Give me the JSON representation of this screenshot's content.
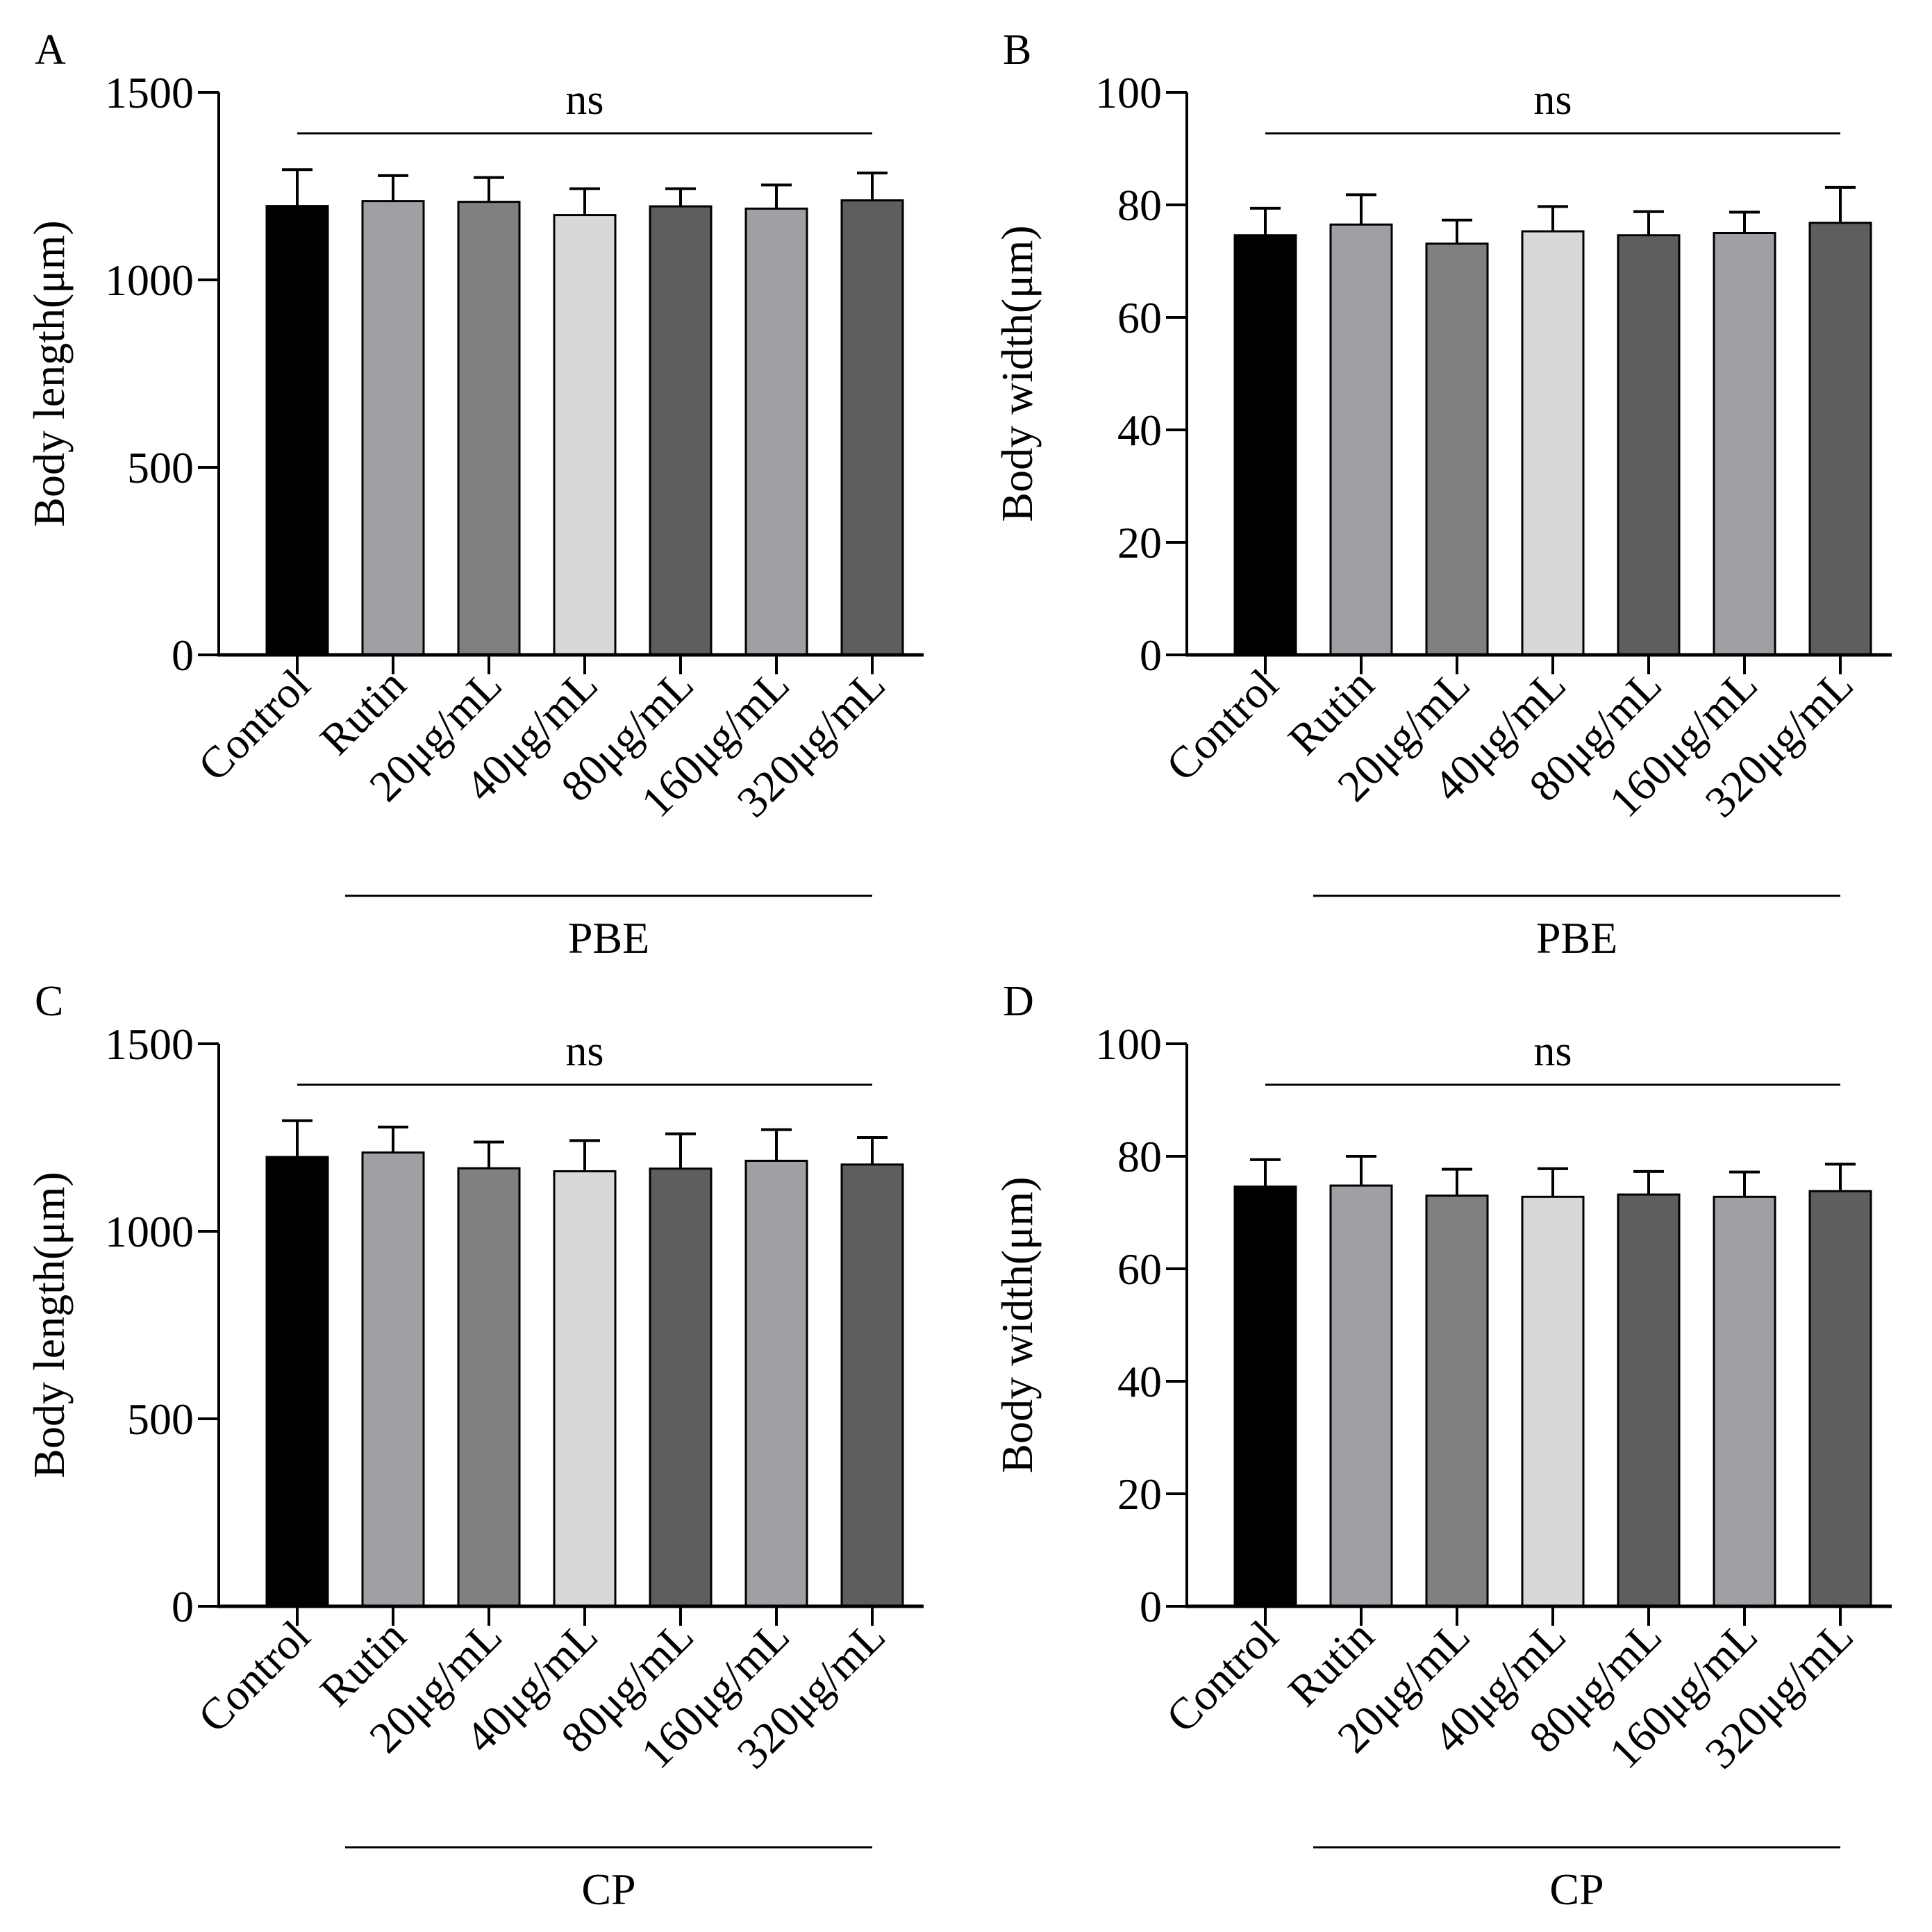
{
  "chart_data": [
    {
      "panel": "A",
      "type": "bar",
      "ylabel": "Body length(μm)",
      "ylim": [
        0,
        1500
      ],
      "yticks": [
        0,
        500,
        1000,
        1500
      ],
      "categories": [
        "Control",
        "Rutin",
        "20μg/mL",
        "40μg/mL",
        "80μg/mL",
        "160μg/mL",
        "320μg/mL"
      ],
      "values": [
        1197,
        1210,
        1208,
        1173,
        1196,
        1190,
        1212
      ],
      "errors": [
        97,
        68,
        65,
        70,
        47,
        63,
        73
      ],
      "colors": [
        "#000000",
        "#a19fa4",
        "#808080",
        "#d8d8d8",
        "#5e5e5e",
        "#a19fa4",
        "#5e5e5e"
      ],
      "significance": "ns",
      "group_label": "PBE"
    },
    {
      "panel": "B",
      "type": "bar",
      "ylabel": "Body width(μm)",
      "ylim": [
        0,
        100
      ],
      "yticks": [
        0,
        20,
        40,
        60,
        80,
        100
      ],
      "categories": [
        "Control",
        "Rutin",
        "20μg/mL",
        "40μg/mL",
        "80μg/mL",
        "160μg/mL",
        "320μg/mL"
      ],
      "values": [
        74.6,
        76.5,
        73.1,
        75.3,
        74.6,
        75.0,
        76.8
      ],
      "errors": [
        4.8,
        5.3,
        4.2,
        4.4,
        4.2,
        3.7,
        6.3
      ],
      "colors": [
        "#000000",
        "#a19fa4",
        "#808080",
        "#d8d8d8",
        "#5e5e5e",
        "#a19fa4",
        "#5e5e5e"
      ],
      "significance": "ns",
      "group_label": "PBE"
    },
    {
      "panel": "C",
      "type": "bar",
      "ylabel": "Body length(μm)",
      "ylim": [
        0,
        1500
      ],
      "yticks": [
        0,
        500,
        1000,
        1500
      ],
      "categories": [
        "Control",
        "Rutin",
        "20μg/mL",
        "40μg/mL",
        "80μg/mL",
        "160μg/mL",
        "320μg/mL"
      ],
      "values": [
        1198,
        1210,
        1168,
        1160,
        1167,
        1188,
        1178
      ],
      "errors": [
        97,
        68,
        70,
        82,
        93,
        83,
        72
      ],
      "colors": [
        "#000000",
        "#a19fa4",
        "#808080",
        "#d8d8d8",
        "#5e5e5e",
        "#a19fa4",
        "#5e5e5e"
      ],
      "significance": "ns",
      "group_label": "CP"
    },
    {
      "panel": "D",
      "type": "bar",
      "ylabel": "Body width(μm)",
      "ylim": [
        0,
        100
      ],
      "yticks": [
        0,
        20,
        40,
        60,
        80,
        100
      ],
      "categories": [
        "Control",
        "Rutin",
        "20μg/mL",
        "40μg/mL",
        "80μg/mL",
        "160μg/mL",
        "320μg/mL"
      ],
      "values": [
        74.6,
        74.8,
        73.0,
        72.8,
        73.2,
        72.8,
        73.8
      ],
      "errors": [
        4.8,
        5.2,
        4.7,
        5.0,
        4.1,
        4.4,
        4.8
      ],
      "colors": [
        "#000000",
        "#a19fa4",
        "#808080",
        "#d8d8d8",
        "#5e5e5e",
        "#a19fa4",
        "#5e5e5e"
      ],
      "significance": "ns",
      "group_label": "CP"
    }
  ]
}
